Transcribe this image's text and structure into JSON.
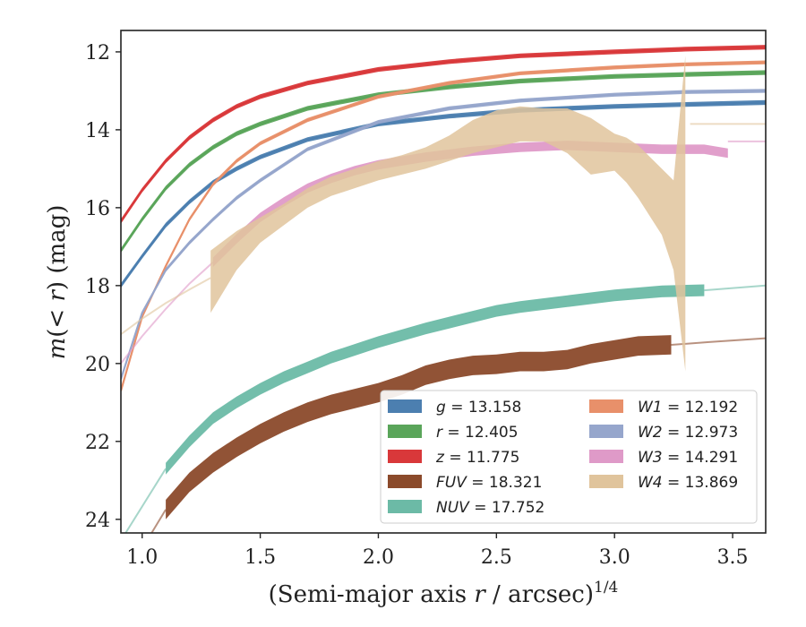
{
  "chart_data": {
    "type": "line",
    "xlabel_main": "(Semi-major axis ",
    "xlabel_var": "r",
    "xlabel_unit": " / arcsec)",
    "xlabel_exp": "1/4",
    "ylabel": "m(< r) (mag)",
    "xlim": [
      0.91,
      3.64
    ],
    "ylim": [
      24.35,
      11.45
    ],
    "y_inverted": true,
    "xticks": [
      "1.0",
      "1.5",
      "2.0",
      "2.5",
      "3.0",
      "3.5"
    ],
    "xtick_values": [
      1.0,
      1.5,
      2.0,
      2.5,
      3.0,
      3.5
    ],
    "yticks": [
      "12",
      "14",
      "16",
      "18",
      "20",
      "22",
      "24"
    ],
    "ytick_values": [
      12,
      14,
      16,
      18,
      20,
      22,
      24
    ],
    "legend_position": "lower-right",
    "series": [
      {
        "name": "g",
        "value": "13.158",
        "color": "#4c7fb0",
        "x": [
          0.91,
          1.0,
          1.1,
          1.2,
          1.3,
          1.4,
          1.5,
          1.7,
          2.0,
          2.3,
          2.6,
          3.0,
          3.3,
          3.64
        ],
        "y": [
          18.0,
          17.25,
          16.45,
          15.85,
          15.35,
          15.0,
          14.7,
          14.25,
          13.85,
          13.65,
          13.5,
          13.4,
          13.35,
          13.3
        ],
        "band": 0.06,
        "style": "line"
      },
      {
        "name": "r",
        "value": "12.405",
        "color": "#5aa55a",
        "x": [
          0.91,
          1.0,
          1.1,
          1.2,
          1.3,
          1.4,
          1.5,
          1.7,
          2.0,
          2.3,
          2.6,
          3.0,
          3.3,
          3.64
        ],
        "y": [
          17.1,
          16.3,
          15.5,
          14.9,
          14.45,
          14.1,
          13.85,
          13.45,
          13.1,
          12.9,
          12.75,
          12.63,
          12.58,
          12.53
        ],
        "band": 0.06,
        "style": "line"
      },
      {
        "name": "z",
        "value": "11.775",
        "color": "#d9383a",
        "x": [
          0.91,
          1.0,
          1.1,
          1.2,
          1.3,
          1.4,
          1.5,
          1.7,
          2.0,
          2.3,
          2.6,
          3.0,
          3.3,
          3.64
        ],
        "y": [
          16.35,
          15.55,
          14.8,
          14.2,
          13.75,
          13.4,
          13.15,
          12.8,
          12.45,
          12.25,
          12.1,
          12.0,
          11.93,
          11.88
        ],
        "band": 0.06,
        "style": "line"
      },
      {
        "name": "FUV",
        "value": "18.321",
        "color": "#8b4a2b",
        "x": [
          1.1,
          1.2,
          1.3,
          1.4,
          1.5,
          1.6,
          1.7,
          1.8,
          2.0,
          2.1,
          2.2,
          2.3,
          2.4,
          2.5,
          2.6,
          2.7,
          2.8,
          2.9,
          3.0,
          3.1,
          3.24
        ],
        "y": [
          23.75,
          23.05,
          22.55,
          22.15,
          21.8,
          21.5,
          21.25,
          21.05,
          20.75,
          20.55,
          20.3,
          20.15,
          20.05,
          20.02,
          19.95,
          19.95,
          19.9,
          19.75,
          19.65,
          19.55,
          19.52
        ],
        "band": 0.25,
        "style": "thick",
        "ext_x": [
          1.04,
          1.1
        ],
        "ext_y": [
          24.35,
          23.75
        ],
        "tail_x": [
          3.24,
          3.4,
          3.64
        ],
        "tail_y": [
          19.52,
          19.45,
          19.35
        ]
      },
      {
        "name": "NUV",
        "value": "17.752",
        "color": "#6cbaa6",
        "x": [
          1.1,
          1.2,
          1.3,
          1.4,
          1.5,
          1.6,
          1.7,
          1.8,
          2.0,
          2.2,
          2.3,
          2.5,
          2.6,
          2.8,
          3.0,
          3.2,
          3.38
        ],
        "y": [
          22.7,
          22.0,
          21.4,
          21.0,
          20.65,
          20.35,
          20.1,
          19.85,
          19.45,
          19.1,
          18.95,
          18.65,
          18.55,
          18.4,
          18.25,
          18.15,
          18.12
        ],
        "band": 0.15,
        "style": "thick",
        "ext_x": [
          0.93,
          1.1
        ],
        "ext_y": [
          24.35,
          22.7
        ],
        "tail_x": [
          3.38,
          3.64
        ],
        "tail_y": [
          18.12,
          18.0
        ]
      },
      {
        "name": "W1",
        "value": "12.192",
        "color": "#e8906a",
        "x": [
          0.91,
          1.0,
          1.1,
          1.2,
          1.3,
          1.4,
          1.5,
          1.7,
          2.0,
          2.3,
          2.6,
          3.0,
          3.3,
          3.64
        ],
        "y": [
          20.7,
          18.8,
          17.5,
          16.3,
          15.4,
          14.8,
          14.35,
          13.75,
          13.15,
          12.8,
          12.55,
          12.4,
          12.32,
          12.27
        ],
        "band": 0.05,
        "style": "line"
      },
      {
        "name": "W2",
        "value": "12.973",
        "color": "#96a6cc",
        "x": [
          0.91,
          1.0,
          1.1,
          1.2,
          1.3,
          1.4,
          1.5,
          1.7,
          2.0,
          2.3,
          2.6,
          3.0,
          3.3,
          3.64
        ],
        "y": [
          20.4,
          18.7,
          17.6,
          16.9,
          16.3,
          15.75,
          15.3,
          14.5,
          13.8,
          13.45,
          13.25,
          13.1,
          13.03,
          13.0
        ],
        "band": 0.05,
        "style": "line"
      },
      {
        "name": "W3",
        "value": "14.291",
        "color": "#df9ac8",
        "x": [
          1.3,
          1.4,
          1.5,
          1.6,
          1.7,
          1.8,
          1.9,
          2.0,
          2.2,
          2.4,
          2.6,
          2.8,
          3.0,
          3.2,
          3.38,
          3.48
        ],
        "y": [
          17.4,
          16.8,
          16.25,
          15.85,
          15.5,
          15.25,
          15.05,
          14.9,
          14.7,
          14.55,
          14.45,
          14.4,
          14.45,
          14.5,
          14.5,
          14.6
        ],
        "band": 0.12,
        "style": "band",
        "ext_x": [
          0.91,
          1.0,
          1.1,
          1.2,
          1.3
        ],
        "ext_y": [
          20.0,
          19.3,
          18.6,
          17.95,
          17.4
        ],
        "tail_x": [
          3.48,
          3.64
        ],
        "tail_y": [
          14.3,
          14.3
        ]
      },
      {
        "name": "W4",
        "value": "13.869",
        "color": "#e0c49c",
        "x": [
          1.29,
          1.4,
          1.5,
          1.6,
          1.7,
          1.8,
          1.9,
          2.0,
          2.1,
          2.2,
          2.3,
          2.4,
          2.5,
          2.6,
          2.7,
          2.8,
          2.9,
          3.0,
          3.05,
          3.1,
          3.2,
          3.25,
          3.3
        ],
        "y": [
          17.8,
          17.1,
          16.6,
          16.2,
          15.8,
          15.5,
          15.3,
          15.1,
          14.95,
          14.8,
          14.6,
          14.35,
          14.15,
          13.95,
          13.8,
          13.85,
          14.3,
          14.7,
          14.9,
          15.2,
          15.9,
          16.5,
          17.8
        ],
        "band_lo": [
          0.9,
          0.5,
          0.3,
          0.25,
          0.2,
          0.2,
          0.2,
          0.2,
          0.2,
          0.2,
          0.2,
          0.25,
          0.3,
          0.35,
          0.5,
          0.75,
          0.85,
          0.35,
          0.45,
          0.55,
          0.8,
          1.1,
          2.4
        ],
        "band_hi": [
          0.7,
          0.5,
          0.35,
          0.3,
          0.3,
          0.3,
          0.3,
          0.3,
          0.3,
          0.35,
          0.45,
          0.6,
          0.65,
          0.55,
          0.35,
          0.4,
          0.6,
          0.6,
          0.7,
          0.8,
          0.9,
          1.2,
          5.7
        ],
        "style": "asym",
        "ext_x": [
          0.91,
          1.0,
          1.1,
          1.2,
          1.29
        ],
        "ext_y": [
          19.25,
          18.85,
          18.45,
          18.1,
          17.8
        ],
        "tail_x": [
          3.32,
          3.64
        ],
        "tail_y": [
          13.85,
          13.85
        ]
      }
    ]
  }
}
